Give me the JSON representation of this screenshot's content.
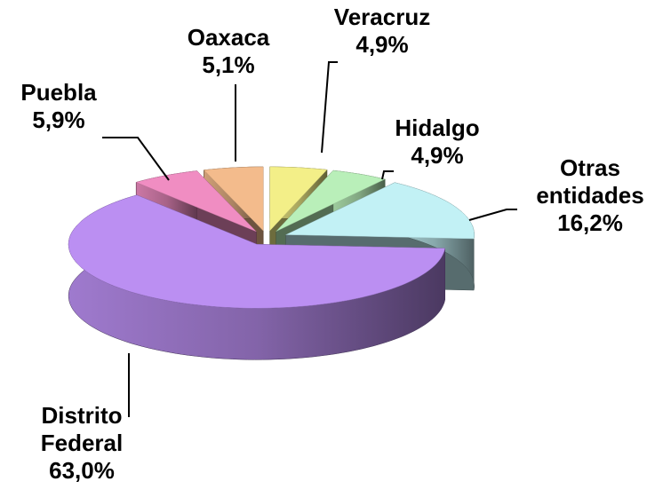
{
  "chart_data": {
    "type": "pie3d",
    "categories": [
      "Veracruz",
      "Hidalgo",
      "Otras entidades",
      "Distrito Federal",
      "Puebla",
      "Oaxaca"
    ],
    "values": [
      4.9,
      4.9,
      16.2,
      63.0,
      5.9,
      5.1
    ],
    "value_labels": [
      "4,9%",
      "4,9%",
      "16,2%",
      "63,0%",
      "5,9%",
      "5,1%"
    ],
    "colors": [
      "#f3ef88",
      "#b9efb9",
      "#c2f1f5",
      "#bb8ff2",
      "#f08dc2",
      "#f3bb8c"
    ]
  }
}
